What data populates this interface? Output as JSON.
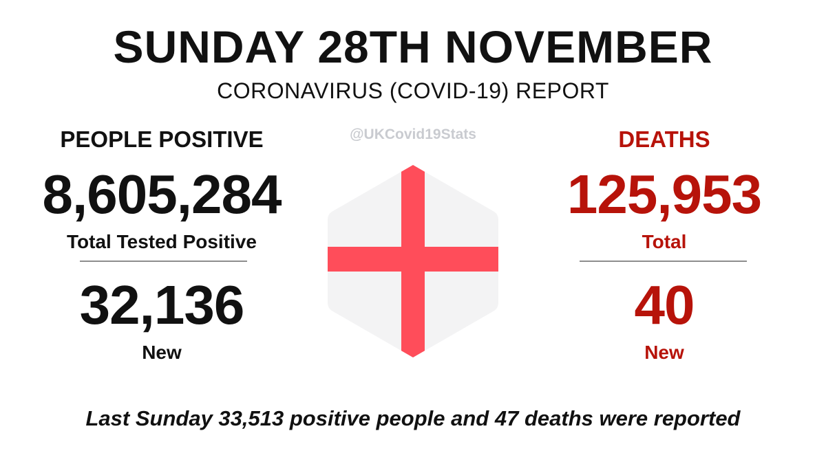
{
  "header": {
    "title": "SUNDAY 28TH NOVEMBER",
    "subtitle": "CORONAVIRUS (COVID-19) REPORT",
    "handle": "@UKCovid19Stats"
  },
  "positive": {
    "label": "PEOPLE POSITIVE",
    "total": "8,605,284",
    "total_label": "Total Tested Positive",
    "new": "32,136",
    "new_label": "New"
  },
  "deaths": {
    "label": "DEATHS",
    "total": "125,953",
    "total_label": "Total",
    "new": "40",
    "new_label": "New"
  },
  "footer": {
    "text": "Last Sunday 33,513 positive people and 47 deaths were reported"
  },
  "colors": {
    "deaths_red": "#b7130a",
    "flag_cross": "#ff4d5a",
    "flag_field": "#f3f3f4",
    "divider": "#8d8d8d"
  },
  "icons": {
    "emblem": "england-flag-hexagon-icon"
  }
}
